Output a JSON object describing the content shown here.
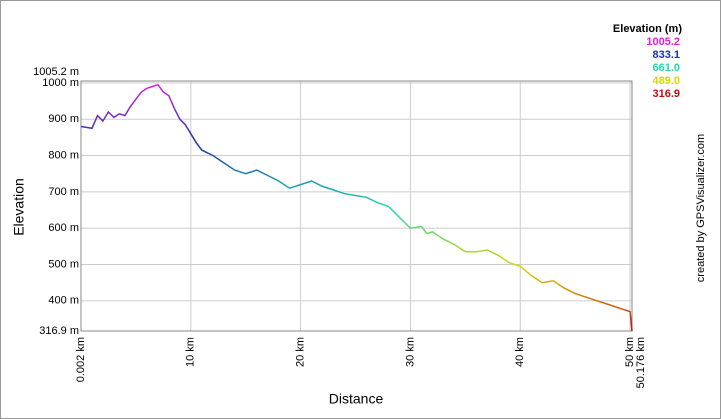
{
  "chart_data": {
    "type": "line",
    "ylabel": "Elevation",
    "xlabel": "Distance",
    "credit": "created by GPSVisualizer.com",
    "legend_title": "Elevation (m)",
    "legend": [
      {
        "label": "1005.2",
        "color": "#e020e0"
      },
      {
        "label": "833.1",
        "color": "#2030b0"
      },
      {
        "label": "661.0",
        "color": "#20d8b0"
      },
      {
        "label": "489.0",
        "color": "#d8d800"
      },
      {
        "label": "316.9",
        "color": "#c01010"
      }
    ],
    "grid": true,
    "xlim": [
      0.002,
      50.176
    ],
    "ylim": [
      316.9,
      1005.2
    ],
    "xticks": [
      {
        "value": 0.002,
        "label": "0.002 km"
      },
      {
        "value": 10,
        "label": "10 km"
      },
      {
        "value": 20,
        "label": "20 km"
      },
      {
        "value": 30,
        "label": "30 km"
      },
      {
        "value": 40,
        "label": "40 km"
      },
      {
        "value": 50,
        "label": "50 km"
      },
      {
        "value": 50.176,
        "label": "50.176 km"
      }
    ],
    "yticks": [
      {
        "value": 316.9,
        "label": "316.9 m"
      },
      {
        "value": 400,
        "label": "400 m"
      },
      {
        "value": 500,
        "label": "500 m"
      },
      {
        "value": 600,
        "label": "600 m"
      },
      {
        "value": 700,
        "label": "700 m"
      },
      {
        "value": 800,
        "label": "800 m"
      },
      {
        "value": 900,
        "label": "900 m"
      },
      {
        "value": 1000,
        "label": "1000 m"
      },
      {
        "value": 1005.2,
        "label": "1005.2 m"
      }
    ],
    "x": [
      0.002,
      1,
      1.5,
      2,
      2.5,
      3,
      3.5,
      4,
      4.5,
      5,
      5.5,
      6,
      6.5,
      7,
      7.5,
      8,
      8.5,
      9,
      9.5,
      10,
      10.5,
      11,
      12,
      13,
      14,
      15,
      16,
      17,
      18,
      19,
      20,
      21,
      22,
      23,
      24,
      25,
      26,
      27,
      28,
      29,
      30,
      31,
      31.5,
      32,
      33,
      34,
      35,
      36,
      37,
      38,
      39,
      40,
      41,
      42,
      43,
      44,
      45,
      46,
      47,
      48,
      49,
      50,
      50.176
    ],
    "values": [
      880,
      875,
      910,
      895,
      920,
      905,
      915,
      910,
      935,
      955,
      975,
      985,
      990,
      995,
      975,
      965,
      930,
      900,
      885,
      860,
      835,
      815,
      800,
      780,
      760,
      750,
      760,
      745,
      730,
      710,
      720,
      730,
      715,
      705,
      695,
      690,
      685,
      670,
      660,
      630,
      600,
      605,
      585,
      590,
      570,
      555,
      535,
      535,
      540,
      525,
      505,
      495,
      470,
      450,
      455,
      435,
      420,
      410,
      400,
      390,
      380,
      370,
      316.9
    ]
  }
}
